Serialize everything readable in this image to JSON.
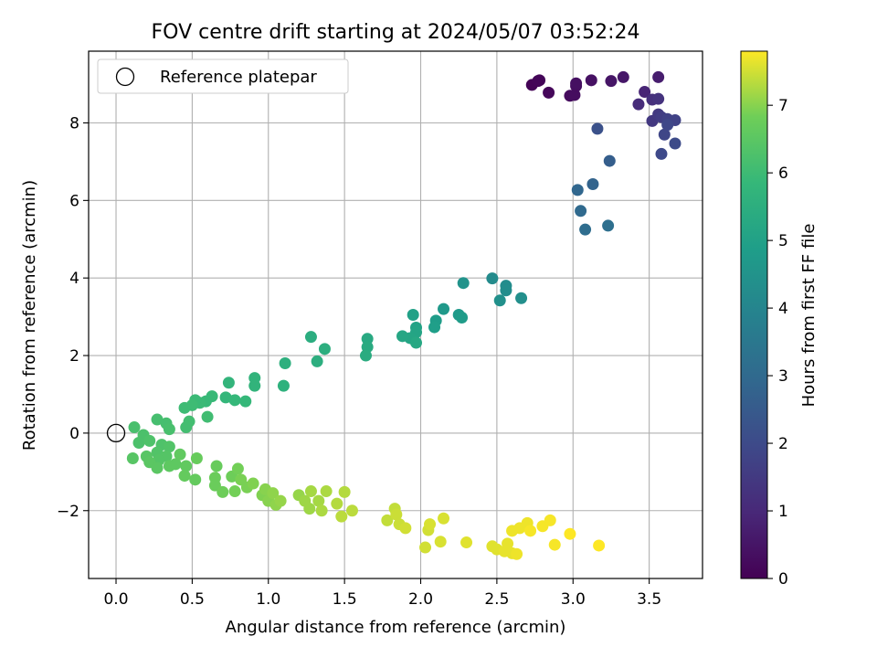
{
  "chart_data": {
    "type": "scatter",
    "title": "FOV centre drift starting at 2024/05/07 03:52:24",
    "xlabel": "Angular distance from reference (arcmin)",
    "ylabel": "Rotation from reference (arcmin)",
    "xlim": [
      -0.18,
      3.85
    ],
    "ylim": [
      -3.75,
      9.85
    ],
    "xticks": [
      0.0,
      0.5,
      1.0,
      1.5,
      2.0,
      2.5,
      3.0,
      3.5
    ],
    "xtick_labels": [
      "0.0",
      "0.5",
      "1.0",
      "1.5",
      "2.0",
      "2.5",
      "3.0",
      "3.5"
    ],
    "yticks": [
      -2,
      0,
      2,
      4,
      6,
      8
    ],
    "ytick_labels": [
      "−2",
      "0",
      "2",
      "4",
      "6",
      "8"
    ],
    "grid": true,
    "legend": {
      "position": "top-left",
      "entries": [
        "Reference platepar"
      ]
    },
    "reference_point": {
      "x": 0.0,
      "y": 0.0
    },
    "colorbar": {
      "label": "Hours from first FF file",
      "range": [
        0,
        7.8
      ],
      "ticks": [
        0,
        1,
        2,
        3,
        4,
        5,
        6,
        7
      ],
      "tick_labels": [
        "0",
        "1",
        "2",
        "3",
        "4",
        "5",
        "6",
        "7"
      ],
      "colormap": "viridis"
    },
    "points": [
      {
        "x": 2.73,
        "y": 8.98,
        "c": 0.05
      },
      {
        "x": 2.77,
        "y": 9.08,
        "c": 0.1
      },
      {
        "x": 2.78,
        "y": 9.1,
        "c": 0.1
      },
      {
        "x": 2.84,
        "y": 8.78,
        "c": 0.15
      },
      {
        "x": 2.98,
        "y": 8.7,
        "c": 0.25
      },
      {
        "x": 3.01,
        "y": 8.72,
        "c": 0.3
      },
      {
        "x": 3.02,
        "y": 8.95,
        "c": 0.3
      },
      {
        "x": 3.02,
        "y": 9.02,
        "c": 0.35
      },
      {
        "x": 3.12,
        "y": 9.1,
        "c": 0.4
      },
      {
        "x": 3.25,
        "y": 9.08,
        "c": 0.5
      },
      {
        "x": 3.33,
        "y": 9.18,
        "c": 0.55
      },
      {
        "x": 3.56,
        "y": 9.18,
        "c": 0.7
      },
      {
        "x": 3.47,
        "y": 8.8,
        "c": 0.9
      },
      {
        "x": 3.43,
        "y": 8.48,
        "c": 1.1
      },
      {
        "x": 3.52,
        "y": 8.6,
        "c": 1.2
      },
      {
        "x": 3.56,
        "y": 8.62,
        "c": 1.3
      },
      {
        "x": 3.52,
        "y": 8.05,
        "c": 1.45
      },
      {
        "x": 3.56,
        "y": 8.22,
        "c": 1.5
      },
      {
        "x": 3.58,
        "y": 8.15,
        "c": 1.6
      },
      {
        "x": 3.62,
        "y": 8.1,
        "c": 1.7
      },
      {
        "x": 3.67,
        "y": 8.07,
        "c": 1.75
      },
      {
        "x": 3.6,
        "y": 7.7,
        "c": 1.85
      },
      {
        "x": 3.62,
        "y": 7.95,
        "c": 1.9
      },
      {
        "x": 3.58,
        "y": 7.2,
        "c": 1.95
      },
      {
        "x": 3.67,
        "y": 7.47,
        "c": 2.0
      },
      {
        "x": 3.16,
        "y": 7.85,
        "c": 2.2
      },
      {
        "x": 3.24,
        "y": 7.02,
        "c": 2.6
      },
      {
        "x": 3.13,
        "y": 6.42,
        "c": 2.8
      },
      {
        "x": 3.03,
        "y": 6.27,
        "c": 2.9
      },
      {
        "x": 3.05,
        "y": 5.73,
        "c": 3.0
      },
      {
        "x": 3.08,
        "y": 5.25,
        "c": 3.1
      },
      {
        "x": 3.23,
        "y": 5.35,
        "c": 3.2
      },
      {
        "x": 2.47,
        "y": 3.99,
        "c": 4.2
      },
      {
        "x": 2.56,
        "y": 3.8,
        "c": 4.25
      },
      {
        "x": 2.56,
        "y": 3.68,
        "c": 4.3
      },
      {
        "x": 2.52,
        "y": 3.42,
        "c": 4.4
      },
      {
        "x": 2.66,
        "y": 3.48,
        "c": 4.35
      },
      {
        "x": 2.28,
        "y": 3.87,
        "c": 4.5
      },
      {
        "x": 2.15,
        "y": 3.2,
        "c": 4.7
      },
      {
        "x": 2.25,
        "y": 3.05,
        "c": 4.75
      },
      {
        "x": 2.27,
        "y": 2.98,
        "c": 4.8
      },
      {
        "x": 2.1,
        "y": 2.9,
        "c": 4.85
      },
      {
        "x": 2.09,
        "y": 2.73,
        "c": 4.9
      },
      {
        "x": 1.95,
        "y": 3.05,
        "c": 5.0
      },
      {
        "x": 1.97,
        "y": 2.72,
        "c": 5.05
      },
      {
        "x": 1.97,
        "y": 2.6,
        "c": 5.1
      },
      {
        "x": 1.93,
        "y": 2.45,
        "c": 5.15
      },
      {
        "x": 1.88,
        "y": 2.5,
        "c": 5.2
      },
      {
        "x": 1.97,
        "y": 2.33,
        "c": 5.25
      },
      {
        "x": 1.65,
        "y": 2.43,
        "c": 5.3
      },
      {
        "x": 1.65,
        "y": 2.22,
        "c": 5.35
      },
      {
        "x": 1.64,
        "y": 2.0,
        "c": 5.4
      },
      {
        "x": 1.28,
        "y": 2.48,
        "c": 5.45
      },
      {
        "x": 1.37,
        "y": 2.17,
        "c": 5.5
      },
      {
        "x": 1.32,
        "y": 1.85,
        "c": 5.5
      },
      {
        "x": 1.11,
        "y": 1.8,
        "c": 5.55
      },
      {
        "x": 1.1,
        "y": 1.22,
        "c": 5.6
      },
      {
        "x": 0.91,
        "y": 1.42,
        "c": 5.7
      },
      {
        "x": 0.91,
        "y": 1.22,
        "c": 5.7
      },
      {
        "x": 0.74,
        "y": 1.3,
        "c": 5.75
      },
      {
        "x": 0.72,
        "y": 0.92,
        "c": 5.8
      },
      {
        "x": 0.78,
        "y": 0.85,
        "c": 5.85
      },
      {
        "x": 0.85,
        "y": 0.82,
        "c": 5.85
      },
      {
        "x": 0.63,
        "y": 0.95,
        "c": 5.9
      },
      {
        "x": 0.59,
        "y": 0.82,
        "c": 5.9
      },
      {
        "x": 0.55,
        "y": 0.78,
        "c": 5.95
      },
      {
        "x": 0.52,
        "y": 0.85,
        "c": 5.95
      },
      {
        "x": 0.5,
        "y": 0.72,
        "c": 6.0
      },
      {
        "x": 0.45,
        "y": 0.65,
        "c": 6.0
      },
      {
        "x": 0.6,
        "y": 0.42,
        "c": 6.05
      },
      {
        "x": 0.48,
        "y": 0.3,
        "c": 6.1
      },
      {
        "x": 0.46,
        "y": 0.15,
        "c": 6.1
      },
      {
        "x": 0.33,
        "y": 0.25,
        "c": 6.15
      },
      {
        "x": 0.27,
        "y": 0.35,
        "c": 6.15
      },
      {
        "x": 0.35,
        "y": 0.1,
        "c": 6.2
      },
      {
        "x": 0.12,
        "y": 0.15,
        "c": 6.2
      },
      {
        "x": 0.18,
        "y": -0.05,
        "c": 6.25
      },
      {
        "x": 0.15,
        "y": -0.25,
        "c": 6.25
      },
      {
        "x": 0.22,
        "y": -0.2,
        "c": 6.3
      },
      {
        "x": 0.3,
        "y": -0.3,
        "c": 6.3
      },
      {
        "x": 0.27,
        "y": -0.5,
        "c": 6.35
      },
      {
        "x": 0.35,
        "y": -0.35,
        "c": 6.35
      },
      {
        "x": 0.33,
        "y": -0.6,
        "c": 6.4
      },
      {
        "x": 0.28,
        "y": -0.7,
        "c": 6.4
      },
      {
        "x": 0.2,
        "y": -0.6,
        "c": 6.45
      },
      {
        "x": 0.11,
        "y": -0.65,
        "c": 6.45
      },
      {
        "x": 0.22,
        "y": -0.75,
        "c": 6.5
      },
      {
        "x": 0.27,
        "y": -0.9,
        "c": 6.5
      },
      {
        "x": 0.35,
        "y": -0.85,
        "c": 6.55
      },
      {
        "x": 0.39,
        "y": -0.8,
        "c": 6.55
      },
      {
        "x": 0.42,
        "y": -0.55,
        "c": 6.6
      },
      {
        "x": 0.46,
        "y": -0.85,
        "c": 6.6
      },
      {
        "x": 0.45,
        "y": -1.1,
        "c": 6.65
      },
      {
        "x": 0.52,
        "y": -1.2,
        "c": 6.65
      },
      {
        "x": 0.53,
        "y": -0.65,
        "c": 6.7
      },
      {
        "x": 0.66,
        "y": -0.85,
        "c": 6.7
      },
      {
        "x": 0.65,
        "y": -1.15,
        "c": 6.75
      },
      {
        "x": 0.65,
        "y": -1.35,
        "c": 6.75
      },
      {
        "x": 0.7,
        "y": -1.52,
        "c": 6.8
      },
      {
        "x": 0.76,
        "y": -1.12,
        "c": 6.8
      },
      {
        "x": 0.8,
        "y": -0.92,
        "c": 6.85
      },
      {
        "x": 0.78,
        "y": -1.5,
        "c": 6.85
      },
      {
        "x": 0.82,
        "y": -1.2,
        "c": 6.9
      },
      {
        "x": 0.86,
        "y": -1.4,
        "c": 6.9
      },
      {
        "x": 0.9,
        "y": -1.3,
        "c": 6.95
      },
      {
        "x": 0.96,
        "y": -1.6,
        "c": 6.95
      },
      {
        "x": 0.98,
        "y": -1.45,
        "c": 7.0
      },
      {
        "x": 1.0,
        "y": -1.75,
        "c": 7.0
      },
      {
        "x": 1.03,
        "y": -1.55,
        "c": 7.05
      },
      {
        "x": 1.05,
        "y": -1.85,
        "c": 7.05
      },
      {
        "x": 1.08,
        "y": -1.75,
        "c": 7.1
      },
      {
        "x": 1.2,
        "y": -1.6,
        "c": 7.1
      },
      {
        "x": 1.24,
        "y": -1.75,
        "c": 7.15
      },
      {
        "x": 1.27,
        "y": -1.95,
        "c": 7.15
      },
      {
        "x": 1.28,
        "y": -1.5,
        "c": 7.2
      },
      {
        "x": 1.33,
        "y": -1.75,
        "c": 7.2
      },
      {
        "x": 1.35,
        "y": -2.0,
        "c": 7.25
      },
      {
        "x": 1.38,
        "y": -1.5,
        "c": 7.25
      },
      {
        "x": 1.45,
        "y": -1.82,
        "c": 7.3
      },
      {
        "x": 1.5,
        "y": -1.52,
        "c": 7.3
      },
      {
        "x": 1.48,
        "y": -2.15,
        "c": 7.35
      },
      {
        "x": 1.55,
        "y": -2.0,
        "c": 7.35
      },
      {
        "x": 1.78,
        "y": -2.25,
        "c": 7.4
      },
      {
        "x": 1.83,
        "y": -1.95,
        "c": 7.4
      },
      {
        "x": 1.84,
        "y": -2.1,
        "c": 7.45
      },
      {
        "x": 1.86,
        "y": -2.35,
        "c": 7.45
      },
      {
        "x": 1.9,
        "y": -2.45,
        "c": 7.5
      },
      {
        "x": 2.03,
        "y": -2.95,
        "c": 7.5
      },
      {
        "x": 2.05,
        "y": -2.5,
        "c": 7.5
      },
      {
        "x": 2.06,
        "y": -2.35,
        "c": 7.55
      },
      {
        "x": 2.13,
        "y": -2.8,
        "c": 7.55
      },
      {
        "x": 2.15,
        "y": -2.2,
        "c": 7.55
      },
      {
        "x": 2.3,
        "y": -2.82,
        "c": 7.6
      },
      {
        "x": 2.47,
        "y": -2.92,
        "c": 7.6
      },
      {
        "x": 2.5,
        "y": -3.0,
        "c": 7.6
      },
      {
        "x": 2.55,
        "y": -3.05,
        "c": 7.65
      },
      {
        "x": 2.57,
        "y": -2.85,
        "c": 7.65
      },
      {
        "x": 2.6,
        "y": -3.1,
        "c": 7.65
      },
      {
        "x": 2.63,
        "y": -3.12,
        "c": 7.7
      },
      {
        "x": 2.6,
        "y": -2.52,
        "c": 7.7
      },
      {
        "x": 2.65,
        "y": -2.45,
        "c": 7.7
      },
      {
        "x": 2.7,
        "y": -2.32,
        "c": 7.7
      },
      {
        "x": 2.72,
        "y": -2.52,
        "c": 7.75
      },
      {
        "x": 2.8,
        "y": -2.4,
        "c": 7.75
      },
      {
        "x": 2.85,
        "y": -2.25,
        "c": 7.75
      },
      {
        "x": 2.88,
        "y": -2.88,
        "c": 7.75
      },
      {
        "x": 2.98,
        "y": -2.6,
        "c": 7.8
      },
      {
        "x": 3.17,
        "y": -2.9,
        "c": 7.8
      }
    ]
  }
}
